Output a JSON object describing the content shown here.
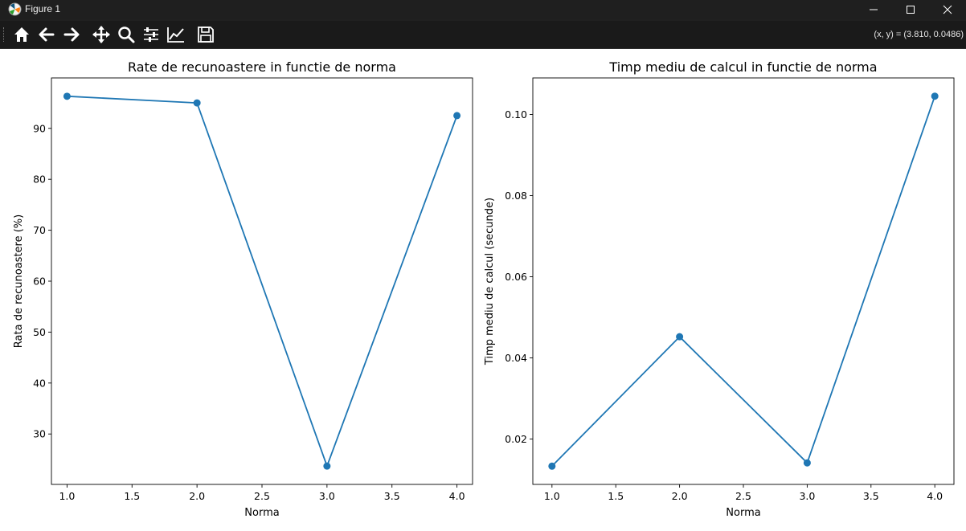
{
  "window": {
    "title": "Figure 1",
    "minimize_icon": "minimize-icon",
    "maximize_icon": "maximize-icon",
    "close_icon": "close-icon"
  },
  "toolbar": {
    "tools": [
      "home-icon",
      "back-arrow-icon",
      "forward-arrow-icon",
      "pan-icon",
      "zoom-icon",
      "configure-subplots-icon",
      "edit-axis-icon",
      "save-icon"
    ],
    "coordinates": "(x, y) = (3.810, 0.0486)"
  },
  "colors": {
    "line": "#1f77b4",
    "titlebar_bg": "#1f1f1f",
    "toolbar_bg": "#1a1a1a",
    "figure_bg": "#ffffff"
  },
  "chart_data": [
    {
      "type": "line",
      "title": "Rate de recunoastere in functie de norma",
      "xlabel": "Norma",
      "ylabel": "Rata de recunoastere (%)",
      "x": [
        1.0,
        2.0,
        3.0,
        4.0
      ],
      "y": [
        96.3,
        95.0,
        23.7,
        92.5
      ],
      "xlim": [
        0.88,
        4.12
      ],
      "ylim": [
        20.1,
        99.9
      ],
      "xticks": [
        1.0,
        1.5,
        2.0,
        2.5,
        3.0,
        3.5,
        4.0
      ],
      "xtick_labels": [
        "1.0",
        "1.5",
        "2.0",
        "2.5",
        "3.0",
        "3.5",
        "4.0"
      ],
      "yticks": [
        30,
        40,
        50,
        60,
        70,
        80,
        90
      ],
      "ytick_labels": [
        "30",
        "40",
        "50",
        "60",
        "70",
        "80",
        "90"
      ],
      "marker": "o",
      "grid": false
    },
    {
      "type": "line",
      "title": "Timp mediu de calcul in functie de norma",
      "xlabel": "Norma",
      "ylabel": "Timp mediu de calcul (secunde)",
      "x": [
        1.0,
        2.0,
        3.0,
        4.0
      ],
      "y": [
        0.0133,
        0.0452,
        0.0141,
        0.1045
      ],
      "xlim": [
        0.85,
        4.15
      ],
      "ylim": [
        0.0088,
        0.109
      ],
      "xticks": [
        1.0,
        1.5,
        2.0,
        2.5,
        3.0,
        3.5,
        4.0
      ],
      "xtick_labels": [
        "1.0",
        "1.5",
        "2.0",
        "2.5",
        "3.0",
        "3.5",
        "4.0"
      ],
      "yticks": [
        0.02,
        0.04,
        0.06,
        0.08,
        0.1
      ],
      "ytick_labels": [
        "0.02",
        "0.04",
        "0.06",
        "0.08",
        "0.10"
      ],
      "marker": "o",
      "grid": false
    }
  ]
}
